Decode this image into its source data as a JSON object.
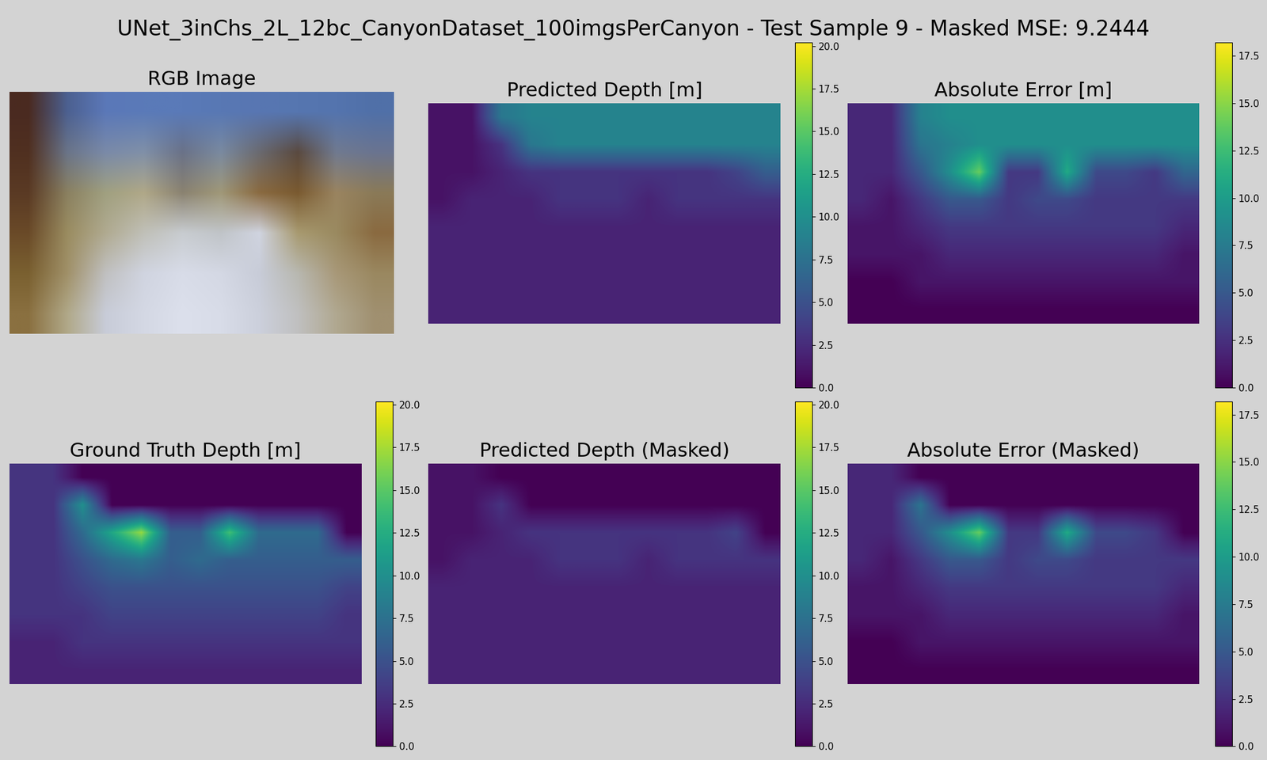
{
  "title": "UNet_3inChs_2L_12bc_CanyonDataset_100imgsPerCanyon - Test Sample 9 - Masked MSE: 9.2444",
  "chart_data": [
    {
      "type": "image",
      "title": "RGB Image",
      "tick_labels": false,
      "cells": [
        [
          "#4a2a20",
          "#4c6090",
          "#5b78b8",
          "#5a7ab8",
          "#5a7ab8",
          "#5878b4",
          "#5876b2",
          "#5676b0",
          "#5474ae",
          "#5070a8"
        ],
        [
          "#503020",
          "#6a7488",
          "#7a8aa8",
          "#8090a8",
          "#6a7288",
          "#7a8aa0",
          "#6a6a70",
          "#5a4a40",
          "#707a90",
          "#6a7490"
        ],
        [
          "#5a3a24",
          "#8a8060",
          "#a0a080",
          "#b0a888",
          "#8a8270",
          "#a09878",
          "#8a6a40",
          "#7a5a30",
          "#9a8460",
          "#8a7a58"
        ],
        [
          "#6a4a28",
          "#9a8c60",
          "#b0aa90",
          "#c0c0b8",
          "#c8ccd0",
          "#c0c4c8",
          "#d0d4e0",
          "#a89a70",
          "#9a8a60",
          "#8a6a40"
        ],
        [
          "#7a6030",
          "#a09068",
          "#c0c0c0",
          "#d0d4e0",
          "#d8dce8",
          "#d4d8e4",
          "#c8ccd8",
          "#b8b8b0",
          "#a89878",
          "#9a8860"
        ],
        [
          "#8a7040",
          "#b0a888",
          "#c8ccd8",
          "#d4d8e4",
          "#dce0ec",
          "#d8dce8",
          "#ccd0dc",
          "#c0c0c0",
          "#b0a890",
          "#a09070"
        ]
      ]
    },
    {
      "type": "heatmap",
      "title": "Predicted Depth [m]",
      "tick_labels": false,
      "colorbar_range": [
        0,
        20.2
      ],
      "colorbar_ticks": [
        {
          "value": 0,
          "label": "0.0"
        },
        2.5,
        {
          "value": 5,
          "label": "5.0"
        },
        7.5,
        {
          "value": 10,
          "label": "10.0"
        },
        12.5,
        {
          "value": 15,
          "label": "15.0"
        },
        17.5,
        {
          "value": 20,
          "label": "20.0"
        }
      ],
      "cells": [
        [
          1,
          1,
          8,
          9,
          9,
          9,
          9,
          9,
          9,
          9,
          9,
          9
        ],
        [
          1,
          1,
          3,
          8,
          9,
          9,
          9,
          9,
          9,
          9,
          9,
          9
        ],
        [
          1,
          1,
          2,
          3,
          3,
          3,
          3,
          3,
          3,
          3,
          4,
          6
        ],
        [
          1,
          2,
          2,
          2,
          3,
          3,
          3,
          2,
          3,
          3,
          3,
          3
        ],
        [
          2,
          2,
          2,
          2,
          2,
          2,
          2,
          2,
          2,
          2,
          2,
          2
        ],
        [
          2,
          2,
          2,
          2,
          2,
          2,
          2,
          2,
          2,
          2,
          2,
          2
        ],
        [
          2,
          2,
          2,
          2,
          2,
          2,
          2,
          2,
          2,
          2,
          2,
          2
        ],
        [
          2,
          2,
          2,
          2,
          2,
          2,
          2,
          2,
          2,
          2,
          2,
          2
        ]
      ]
    },
    {
      "type": "heatmap",
      "title": "Absolute Error [m]",
      "tick_labels": false,
      "colorbar_range": [
        0,
        18.2
      ],
      "colorbar_ticks": [
        {
          "value": 0,
          "label": "0.0"
        },
        2.5,
        {
          "value": 5,
          "label": "5.0"
        },
        7.5,
        {
          "value": 10,
          "label": "10.0"
        },
        12.5,
        {
          "value": 15,
          "label": "15.0"
        },
        17.5
      ],
      "cells": [
        [
          2,
          2,
          8,
          9,
          9,
          9,
          9,
          9,
          9,
          9,
          9,
          9
        ],
        [
          2,
          2,
          7,
          8,
          9,
          9,
          9,
          9,
          9,
          9,
          9,
          9
        ],
        [
          2,
          2,
          5,
          9,
          14,
          3,
          3,
          11,
          4,
          4,
          3,
          6
        ],
        [
          2,
          1,
          3,
          5,
          5,
          3,
          4,
          4,
          3,
          3,
          3,
          3
        ],
        [
          1,
          1,
          2,
          3,
          3,
          3,
          3,
          3,
          3,
          3,
          3,
          2
        ],
        [
          1,
          1,
          1,
          2,
          2,
          2,
          2,
          2,
          2,
          2,
          2,
          1
        ],
        [
          0,
          0,
          1,
          1,
          1,
          1,
          1,
          1,
          1,
          1,
          1,
          1
        ],
        [
          0,
          0,
          0,
          0,
          0,
          0,
          0,
          0,
          0,
          0,
          0,
          0
        ]
      ]
    },
    {
      "type": "heatmap",
      "title": "Ground Truth Depth [m]",
      "tick_labels": false,
      "colorbar_range": [
        0,
        20.2
      ],
      "colorbar_ticks": [
        {
          "value": 0,
          "label": "0.0"
        },
        2.5,
        {
          "value": 5,
          "label": "5.0"
        },
        7.5,
        {
          "value": 10,
          "label": "10.0"
        },
        12.5,
        {
          "value": 15,
          "label": "15.0"
        },
        17.5,
        {
          "value": 20,
          "label": "20.0"
        }
      ],
      "cells": [
        [
          3,
          3,
          0,
          0,
          0,
          0,
          0,
          0,
          0,
          0,
          0,
          0
        ],
        [
          3,
          3,
          10,
          0,
          0,
          0,
          0,
          0,
          0,
          0,
          0,
          0
        ],
        [
          3,
          3,
          7,
          12,
          17,
          6,
          6,
          14,
          7,
          7,
          7,
          0
        ],
        [
          3,
          3,
          5,
          7,
          8,
          6,
          7,
          6,
          6,
          6,
          6,
          6
        ],
        [
          3,
          3,
          4,
          5,
          5,
          5,
          5,
          5,
          5,
          5,
          5,
          4
        ],
        [
          3,
          3,
          3,
          4,
          4,
          4,
          4,
          4,
          4,
          4,
          4,
          3
        ],
        [
          2,
          2,
          3,
          3,
          3,
          3,
          3,
          3,
          3,
          3,
          3,
          3
        ],
        [
          2,
          2,
          2,
          2,
          2,
          2,
          2,
          2,
          2,
          2,
          2,
          2
        ]
      ]
    },
    {
      "type": "heatmap",
      "title": "Predicted Depth (Masked)",
      "tick_labels": false,
      "colorbar_range": [
        0,
        20.2
      ],
      "colorbar_ticks": [
        {
          "value": 0,
          "label": "0.0"
        },
        2.5,
        {
          "value": 5,
          "label": "5.0"
        },
        7.5,
        {
          "value": 10,
          "label": "10.0"
        },
        12.5,
        {
          "value": 15,
          "label": "15.0"
        },
        17.5,
        {
          "value": 20,
          "label": "20.0"
        }
      ],
      "cells": [
        [
          1,
          1,
          0,
          0,
          0,
          0,
          0,
          0,
          0,
          0,
          0,
          0
        ],
        [
          1,
          1,
          3,
          0,
          0,
          0,
          0,
          0,
          0,
          0,
          0,
          0
        ],
        [
          1,
          1,
          2,
          3,
          3,
          3,
          3,
          3,
          3,
          3,
          4,
          0
        ],
        [
          1,
          2,
          2,
          2,
          3,
          3,
          3,
          2,
          3,
          3,
          3,
          3
        ],
        [
          2,
          2,
          2,
          2,
          2,
          2,
          2,
          2,
          2,
          2,
          2,
          2
        ],
        [
          2,
          2,
          2,
          2,
          2,
          2,
          2,
          2,
          2,
          2,
          2,
          2
        ],
        [
          2,
          2,
          2,
          2,
          2,
          2,
          2,
          2,
          2,
          2,
          2,
          2
        ],
        [
          2,
          2,
          2,
          2,
          2,
          2,
          2,
          2,
          2,
          2,
          2,
          2
        ]
      ]
    },
    {
      "type": "heatmap",
      "title": "Absolute Error (Masked)",
      "tick_labels": false,
      "colorbar_range": [
        0,
        18.2
      ],
      "colorbar_ticks": [
        {
          "value": 0,
          "label": "0.0"
        },
        2.5,
        {
          "value": 5,
          "label": "5.0"
        },
        7.5,
        {
          "value": 10,
          "label": "10.0"
        },
        12.5,
        {
          "value": 15,
          "label": "15.0"
        },
        17.5
      ],
      "cells": [
        [
          2,
          2,
          0,
          0,
          0,
          0,
          0,
          0,
          0,
          0,
          0,
          0
        ],
        [
          2,
          2,
          7,
          0,
          0,
          0,
          0,
          0,
          0,
          0,
          0,
          0
        ],
        [
          2,
          2,
          5,
          9,
          14,
          3,
          3,
          11,
          4,
          4,
          3,
          0
        ],
        [
          2,
          1,
          3,
          5,
          5,
          3,
          4,
          4,
          3,
          3,
          3,
          3
        ],
        [
          1,
          1,
          2,
          3,
          3,
          3,
          3,
          3,
          3,
          3,
          3,
          2
        ],
        [
          1,
          1,
          1,
          2,
          2,
          2,
          2,
          2,
          2,
          2,
          2,
          1
        ],
        [
          0,
          0,
          1,
          1,
          1,
          1,
          1,
          1,
          1,
          1,
          1,
          1
        ],
        [
          0,
          0,
          0,
          0,
          0,
          0,
          0,
          0,
          0,
          0,
          0,
          0
        ]
      ]
    }
  ]
}
